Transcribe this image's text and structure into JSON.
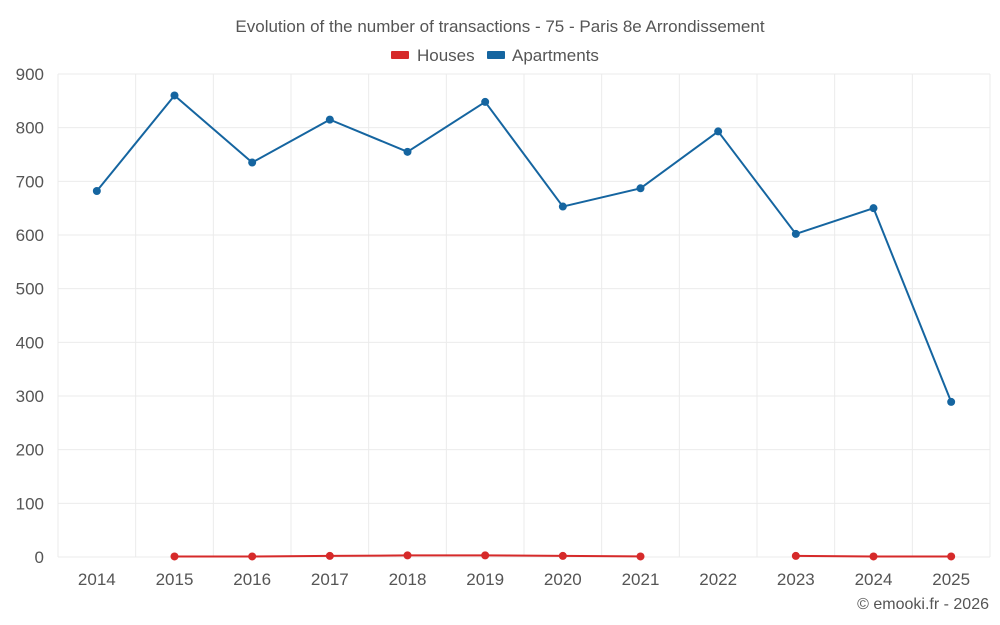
{
  "chart_data": {
    "type": "line",
    "title": "Evolution of the number of transactions - 75 - Paris 8e Arrondissement",
    "categories": [
      "2014",
      "2015",
      "2016",
      "2017",
      "2018",
      "2019",
      "2020",
      "2021",
      "2022",
      "2023",
      "2024",
      "2025"
    ],
    "ylim": [
      0,
      900
    ],
    "yticks": [
      0,
      100,
      200,
      300,
      400,
      500,
      600,
      700,
      800,
      900
    ],
    "grid": true,
    "legend_position": "top-center",
    "series": [
      {
        "name": "Houses",
        "color": "#d62a2a",
        "values": [
          null,
          1,
          1,
          2,
          3,
          3,
          2,
          1,
          null,
          2,
          1,
          1
        ]
      },
      {
        "name": "Apartments",
        "color": "#1565a0",
        "values": [
          682,
          860,
          735,
          815,
          755,
          848,
          653,
          687,
          793,
          602,
          650,
          289
        ]
      }
    ],
    "credit": "© emooki.fr - 2026"
  }
}
